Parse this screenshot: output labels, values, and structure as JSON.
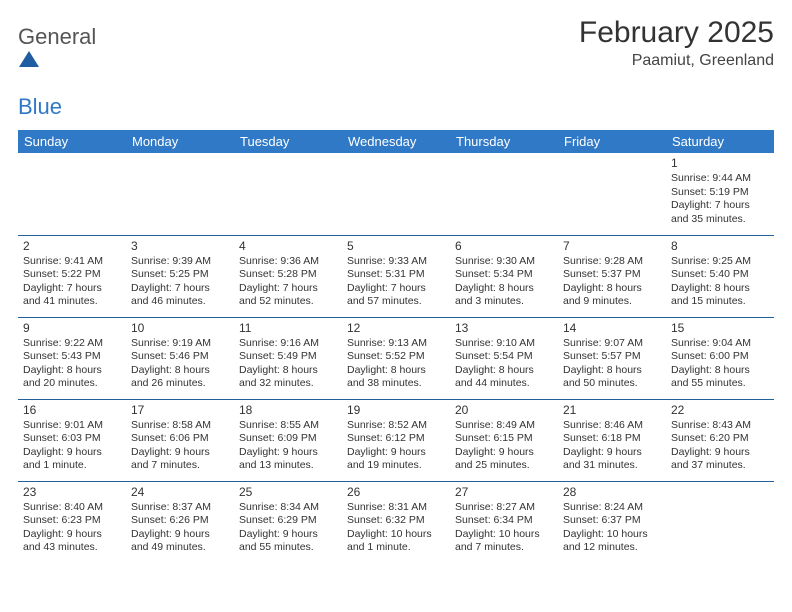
{
  "brand": {
    "word1": "General",
    "word2": "Blue",
    "shape_color": "#1e5da1"
  },
  "title": "February 2025",
  "location": "Paamiut, Greenland",
  "header_bg": "#3079c6",
  "border_color": "#1f5f9a",
  "weekdays": [
    "Sunday",
    "Monday",
    "Tuesday",
    "Wednesday",
    "Thursday",
    "Friday",
    "Saturday"
  ],
  "weeks": [
    [
      null,
      null,
      null,
      null,
      null,
      null,
      {
        "d": "1",
        "sunrise": "9:44 AM",
        "sunset": "5:19 PM",
        "day_h": 7,
        "day_m": 35
      }
    ],
    [
      {
        "d": "2",
        "sunrise": "9:41 AM",
        "sunset": "5:22 PM",
        "day_h": 7,
        "day_m": 41
      },
      {
        "d": "3",
        "sunrise": "9:39 AM",
        "sunset": "5:25 PM",
        "day_h": 7,
        "day_m": 46
      },
      {
        "d": "4",
        "sunrise": "9:36 AM",
        "sunset": "5:28 PM",
        "day_h": 7,
        "day_m": 52
      },
      {
        "d": "5",
        "sunrise": "9:33 AM",
        "sunset": "5:31 PM",
        "day_h": 7,
        "day_m": 57
      },
      {
        "d": "6",
        "sunrise": "9:30 AM",
        "sunset": "5:34 PM",
        "day_h": 8,
        "day_m": 3
      },
      {
        "d": "7",
        "sunrise": "9:28 AM",
        "sunset": "5:37 PM",
        "day_h": 8,
        "day_m": 9
      },
      {
        "d": "8",
        "sunrise": "9:25 AM",
        "sunset": "5:40 PM",
        "day_h": 8,
        "day_m": 15
      }
    ],
    [
      {
        "d": "9",
        "sunrise": "9:22 AM",
        "sunset": "5:43 PM",
        "day_h": 8,
        "day_m": 20
      },
      {
        "d": "10",
        "sunrise": "9:19 AM",
        "sunset": "5:46 PM",
        "day_h": 8,
        "day_m": 26
      },
      {
        "d": "11",
        "sunrise": "9:16 AM",
        "sunset": "5:49 PM",
        "day_h": 8,
        "day_m": 32
      },
      {
        "d": "12",
        "sunrise": "9:13 AM",
        "sunset": "5:52 PM",
        "day_h": 8,
        "day_m": 38
      },
      {
        "d": "13",
        "sunrise": "9:10 AM",
        "sunset": "5:54 PM",
        "day_h": 8,
        "day_m": 44
      },
      {
        "d": "14",
        "sunrise": "9:07 AM",
        "sunset": "5:57 PM",
        "day_h": 8,
        "day_m": 50
      },
      {
        "d": "15",
        "sunrise": "9:04 AM",
        "sunset": "6:00 PM",
        "day_h": 8,
        "day_m": 55
      }
    ],
    [
      {
        "d": "16",
        "sunrise": "9:01 AM",
        "sunset": "6:03 PM",
        "day_h": 9,
        "day_m": 1
      },
      {
        "d": "17",
        "sunrise": "8:58 AM",
        "sunset": "6:06 PM",
        "day_h": 9,
        "day_m": 7
      },
      {
        "d": "18",
        "sunrise": "8:55 AM",
        "sunset": "6:09 PM",
        "day_h": 9,
        "day_m": 13
      },
      {
        "d": "19",
        "sunrise": "8:52 AM",
        "sunset": "6:12 PM",
        "day_h": 9,
        "day_m": 19
      },
      {
        "d": "20",
        "sunrise": "8:49 AM",
        "sunset": "6:15 PM",
        "day_h": 9,
        "day_m": 25
      },
      {
        "d": "21",
        "sunrise": "8:46 AM",
        "sunset": "6:18 PM",
        "day_h": 9,
        "day_m": 31
      },
      {
        "d": "22",
        "sunrise": "8:43 AM",
        "sunset": "6:20 PM",
        "day_h": 9,
        "day_m": 37
      }
    ],
    [
      {
        "d": "23",
        "sunrise": "8:40 AM",
        "sunset": "6:23 PM",
        "day_h": 9,
        "day_m": 43
      },
      {
        "d": "24",
        "sunrise": "8:37 AM",
        "sunset": "6:26 PM",
        "day_h": 9,
        "day_m": 49
      },
      {
        "d": "25",
        "sunrise": "8:34 AM",
        "sunset": "6:29 PM",
        "day_h": 9,
        "day_m": 55
      },
      {
        "d": "26",
        "sunrise": "8:31 AM",
        "sunset": "6:32 PM",
        "day_h": 10,
        "day_m": 1
      },
      {
        "d": "27",
        "sunrise": "8:27 AM",
        "sunset": "6:34 PM",
        "day_h": 10,
        "day_m": 7
      },
      {
        "d": "28",
        "sunrise": "8:24 AM",
        "sunset": "6:37 PM",
        "day_h": 10,
        "day_m": 12
      },
      null
    ]
  ]
}
